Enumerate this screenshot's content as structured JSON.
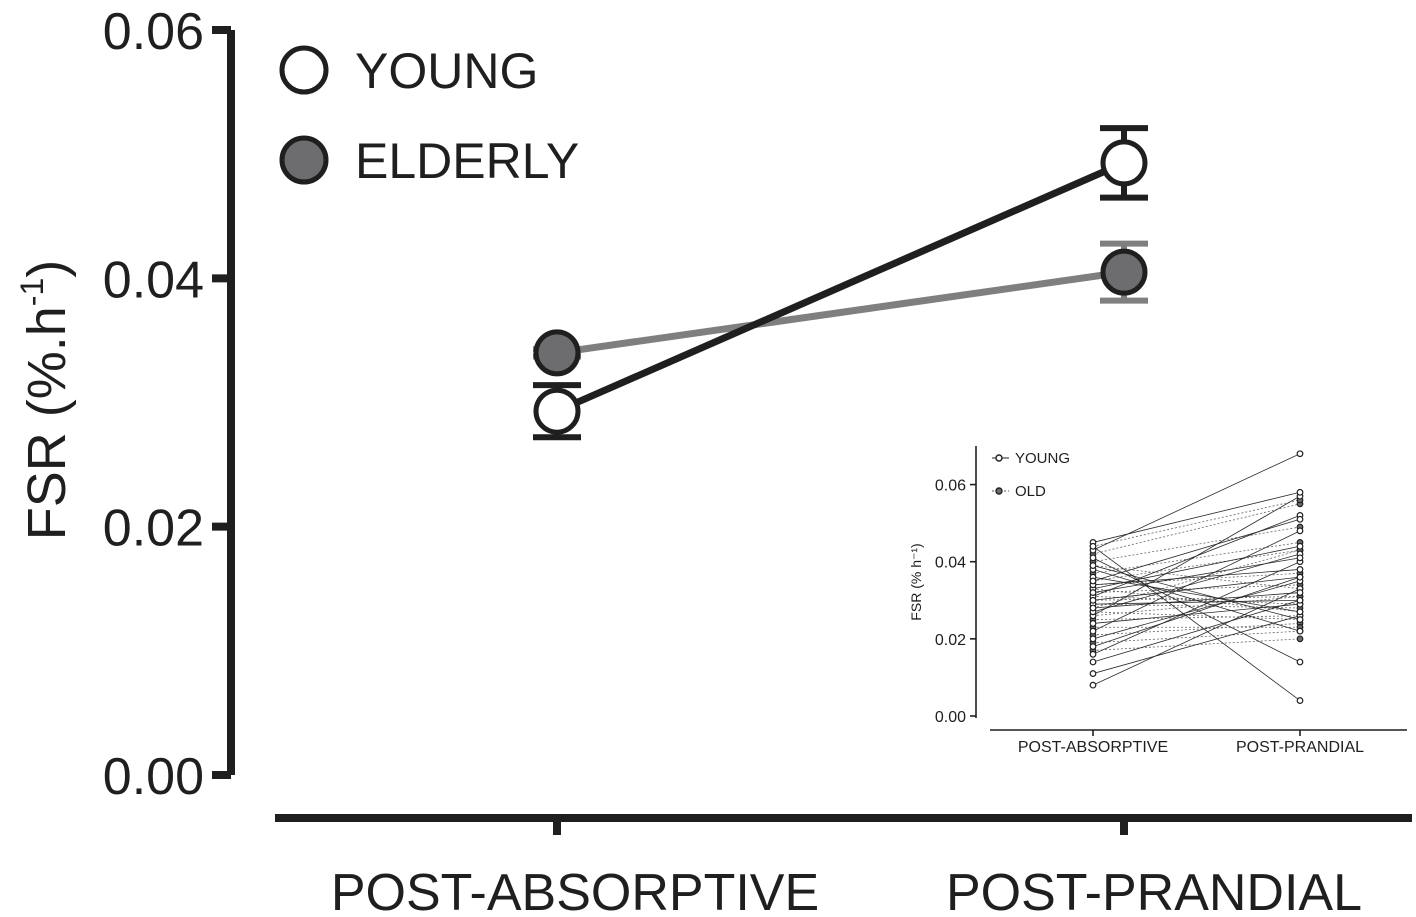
{
  "chart_data": [
    {
      "type": "line",
      "ylabel_main": "FSR (%.h",
      "ylabel_sup": "-1",
      "ylabel_close": ")",
      "xlabel": "",
      "categories": [
        "POST-ABSORPTIVE",
        "POST-PRANDIAL"
      ],
      "ylim": [
        0,
        0.06
      ],
      "yticks": [
        "0.00",
        "0.02",
        "0.04",
        "0.06"
      ],
      "legend_position": "top-left",
      "series": [
        {
          "name": "YOUNG",
          "values": [
            0.0293,
            0.0493
          ],
          "errors": [
            0.0021,
            0.0028
          ],
          "color": "#1f1f1f",
          "marker_fill": "#ffffff"
        },
        {
          "name": "ELDERLY",
          "values": [
            0.034,
            0.0405
          ],
          "errors": [
            0.0003,
            0.0023
          ],
          "color": "#7f7f7f",
          "marker_fill": "#6d6d6f"
        }
      ]
    },
    {
      "type": "line",
      "ylabel": "FSR (% h⁻¹)",
      "xlabel": "",
      "categories": [
        "POST-ABSORPTIVE",
        "POST-PRANDIAL"
      ],
      "ylim": [
        0,
        0.07
      ],
      "yticks": [
        "0.00",
        "0.02",
        "0.04",
        "0.06"
      ],
      "legend_position": "top-left",
      "series_names": [
        "YOUNG",
        "OLD"
      ],
      "young_pairs": [
        [
          0.008,
          0.033
        ],
        [
          0.011,
          0.026
        ],
        [
          0.014,
          0.03
        ],
        [
          0.016,
          0.04
        ],
        [
          0.018,
          0.036
        ],
        [
          0.02,
          0.035
        ],
        [
          0.022,
          0.048
        ],
        [
          0.024,
          0.029
        ],
        [
          0.026,
          0.057
        ],
        [
          0.027,
          0.042
        ],
        [
          0.029,
          0.03
        ],
        [
          0.031,
          0.052
        ],
        [
          0.033,
          0.044
        ],
        [
          0.034,
          0.038
        ],
        [
          0.036,
          0.027
        ],
        [
          0.038,
          0.022
        ],
        [
          0.041,
          0.014
        ],
        [
          0.043,
          0.068
        ],
        [
          0.045,
          0.058
        ],
        [
          0.044,
          0.004
        ],
        [
          0.039,
          0.025
        ],
        [
          0.035,
          0.051
        ],
        [
          0.032,
          0.041
        ],
        [
          0.028,
          0.032
        ],
        [
          0.03,
          0.036
        ]
      ],
      "old_pairs": [
        [
          0.017,
          0.02
        ],
        [
          0.019,
          0.022
        ],
        [
          0.021,
          0.024
        ],
        [
          0.023,
          0.023
        ],
        [
          0.025,
          0.026
        ],
        [
          0.027,
          0.025
        ],
        [
          0.029,
          0.028
        ],
        [
          0.03,
          0.031
        ],
        [
          0.032,
          0.034
        ],
        [
          0.034,
          0.037
        ],
        [
          0.035,
          0.043
        ],
        [
          0.037,
          0.045
        ],
        [
          0.039,
          0.033
        ],
        [
          0.04,
          0.049
        ],
        [
          0.042,
          0.055
        ],
        [
          0.044,
          0.056
        ],
        [
          0.028,
          0.043
        ],
        [
          0.031,
          0.029
        ],
        [
          0.033,
          0.027
        ],
        [
          0.026,
          0.031
        ]
      ]
    }
  ]
}
